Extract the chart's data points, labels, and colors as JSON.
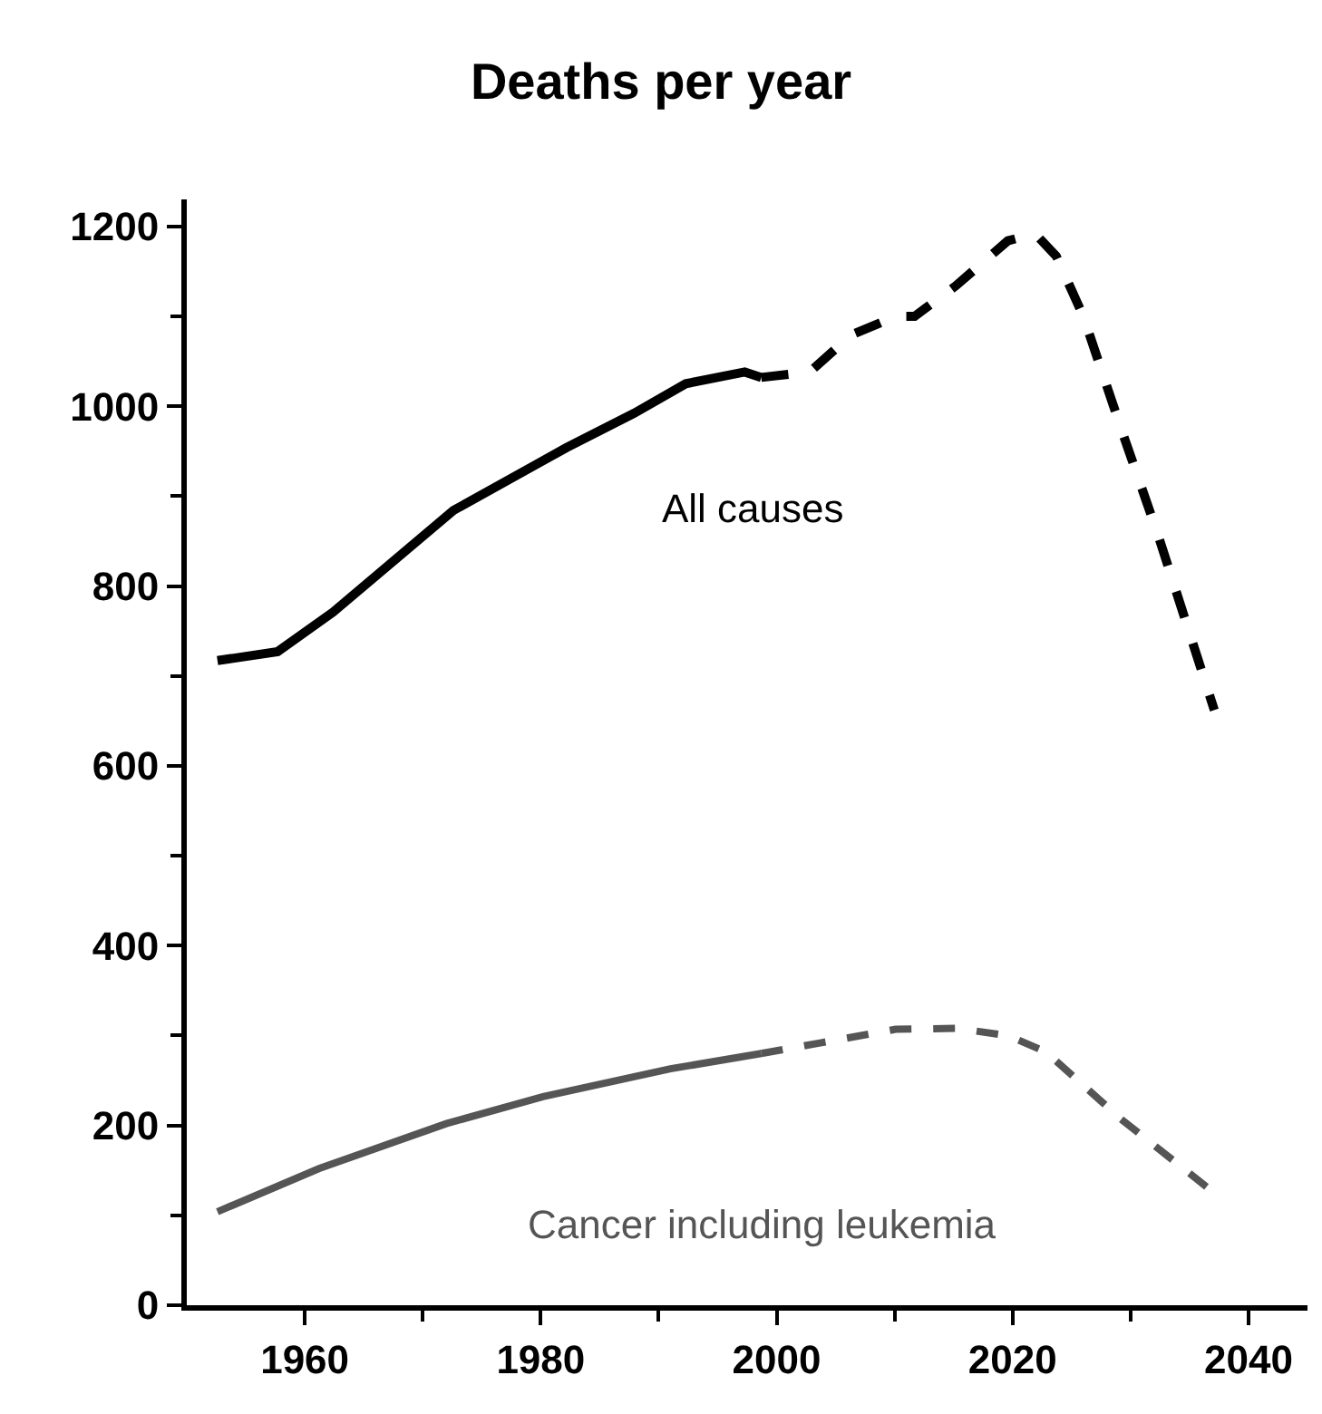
{
  "chart_data": {
    "type": "line",
    "title": "Deaths per year",
    "xlim": [
      1950,
      2045
    ],
    "ylim": [
      0,
      1230
    ],
    "xticks": [
      1960,
      {
        "value": 1970,
        "label": null
      },
      1980,
      {
        "value": 1990,
        "label": null
      },
      2000,
      {
        "value": 2010,
        "label": null
      },
      2020,
      {
        "value": 2030,
        "label": null
      },
      2040
    ],
    "yticks": [
      0,
      {
        "value": 100,
        "label": null
      },
      200,
      {
        "value": 300,
        "label": null
      },
      400,
      {
        "value": 500,
        "label": null
      },
      600,
      {
        "value": 700,
        "label": null
      },
      800,
      {
        "value": 900,
        "label": null
      },
      1000,
      {
        "value": 1100,
        "label": null
      },
      1200
    ],
    "series": [
      {
        "color": "#000000",
        "line_style": "solid",
        "x": [
          1952.6,
          1957.7,
          1962.4,
          1972.6,
          1982.2,
          1987.9,
          1992.3,
          1997.3,
          1998.7
        ],
        "values": [
          717,
          727,
          771,
          884,
          954,
          992,
          1025,
          1038,
          1032
        ]
      },
      {
        "color": "#000000",
        "line_style": "dashed",
        "x": [
          1998.7,
          2002.8,
          2006.3,
          2010.1,
          2011.7,
          2015.2,
          2019.6,
          2021.9,
          2023.7,
          2026,
          2029.2,
          2032.3,
          2037.1
        ],
        "values": [
          1032,
          1038,
          1079,
          1100,
          1100,
          1134,
          1184,
          1192,
          1167,
          1100,
          975,
          858,
          662
        ]
      },
      {
        "color": "#555555",
        "line_style": "solid",
        "x": [
          1952.6,
          1961.2,
          1972,
          1980.2,
          1991,
          1998.7
        ],
        "values": [
          104,
          152,
          202,
          232,
          263,
          280
        ]
      },
      {
        "color": "#555555",
        "line_style": "dashed",
        "x": [
          1998.7,
          2003.8,
          2010.1,
          2015.2,
          2019.6,
          2022.8,
          2029.2,
          2036.8
        ],
        "values": [
          280,
          292,
          307,
          308,
          300,
          282,
          207,
          128
        ]
      }
    ],
    "annotations": [
      "All causes",
      "Cancer including leukemia"
    ]
  }
}
